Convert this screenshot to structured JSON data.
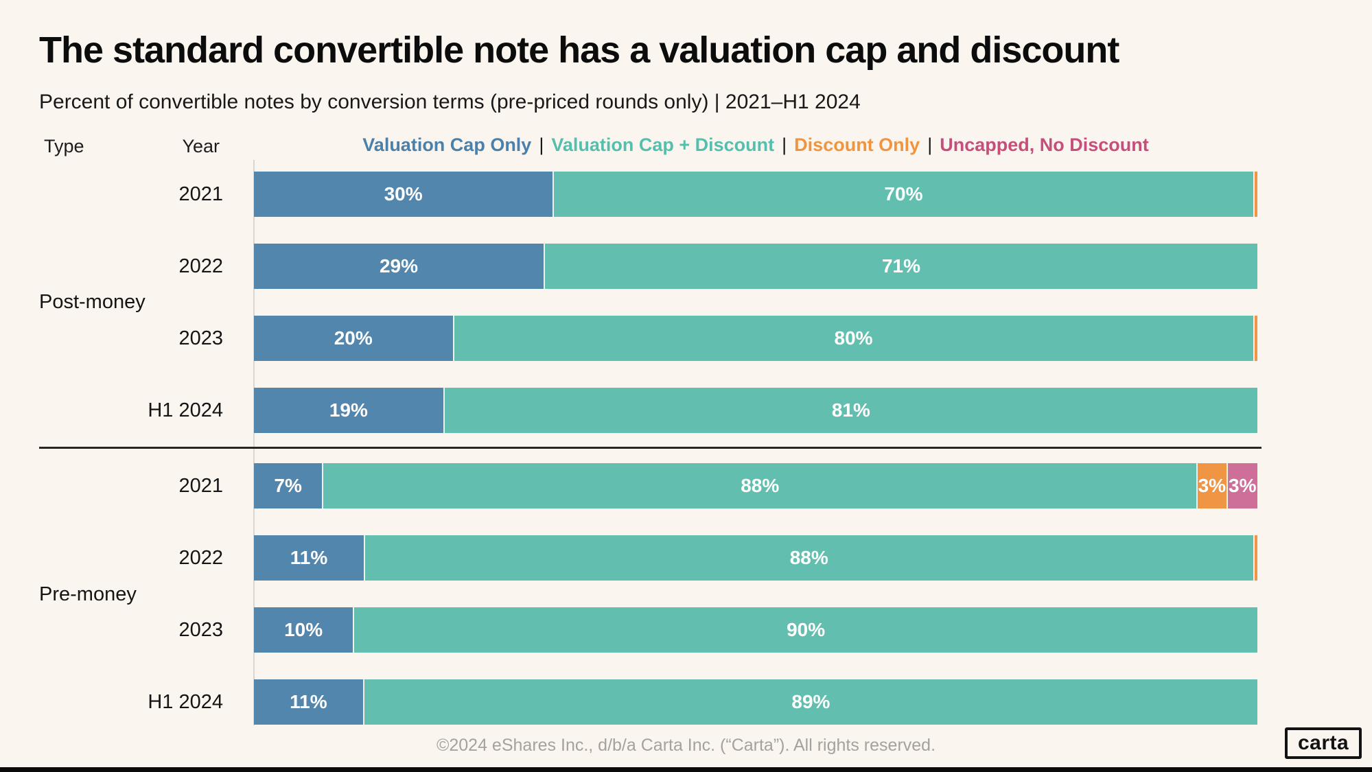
{
  "page": {
    "title": "The standard convertible note has a valuation cap and discount",
    "subtitle": "Percent of convertible notes by conversion terms (pre-priced rounds only) | 2021–H1 2024",
    "footer": "©2024 eShares Inc., d/b/a Carta Inc. (“Carta”). All rights reserved.",
    "logo_text": "carta",
    "background_color": "#faf5ee"
  },
  "header": {
    "type_label": "Type",
    "year_label": "Year"
  },
  "legend": {
    "separator": "|",
    "items": [
      {
        "key": "cap_only",
        "label": "Valuation Cap Only",
        "color": "#4a80aa"
      },
      {
        "key": "cap_discount",
        "label": "Valuation Cap + Discount",
        "color": "#55bfad"
      },
      {
        "key": "discount_only",
        "label": "Discount Only",
        "color": "#f0953f"
      },
      {
        "key": "uncapped",
        "label": "Uncapped, No Discount",
        "color": "#c54e7c"
      }
    ]
  },
  "chart_data": {
    "type": "bar",
    "orientation": "horizontal",
    "stacked": true,
    "unit": "%",
    "x_range": [
      0,
      100
    ],
    "title": "The standard convertible note has a valuation cap and discount",
    "subtitle": "Percent of convertible notes by conversion terms (pre-priced rounds only) | 2021–H1 2024",
    "series_labels": {
      "cap_only": "Valuation Cap Only",
      "cap_discount": "Valuation Cap + Discount",
      "discount_only": "Discount Only",
      "uncapped": "Uncapped, No Discount"
    },
    "series_colors": {
      "cap_only": "#5386ad",
      "cap_discount": "#62bfb0",
      "discount_only": "#ef9544",
      "uncapped": "#ce6f99"
    },
    "groups": [
      {
        "type": "Post-money",
        "rows": [
          {
            "year": "2021",
            "segments": [
              {
                "series": "cap_only",
                "value": 30,
                "label": "30%"
              },
              {
                "series": "cap_discount",
                "value": 70,
                "label": "70%"
              },
              {
                "series": "discount_only",
                "value": 0.3,
                "label": ""
              }
            ]
          },
          {
            "year": "2022",
            "segments": [
              {
                "series": "cap_only",
                "value": 29,
                "label": "29%"
              },
              {
                "series": "cap_discount",
                "value": 71,
                "label": "71%"
              }
            ]
          },
          {
            "year": "2023",
            "segments": [
              {
                "series": "cap_only",
                "value": 20,
                "label": "20%"
              },
              {
                "series": "cap_discount",
                "value": 80,
                "label": "80%"
              },
              {
                "series": "discount_only",
                "value": 0.3,
                "label": ""
              }
            ]
          },
          {
            "year": "H1 2024",
            "segments": [
              {
                "series": "cap_only",
                "value": 19,
                "label": "19%"
              },
              {
                "series": "cap_discount",
                "value": 81,
                "label": "81%"
              }
            ]
          }
        ]
      },
      {
        "type": "Pre-money",
        "rows": [
          {
            "year": "2021",
            "segments": [
              {
                "series": "cap_only",
                "value": 7,
                "label": "7%"
              },
              {
                "series": "cap_discount",
                "value": 88,
                "label": "88%"
              },
              {
                "series": "discount_only",
                "value": 3,
                "label": "3%"
              },
              {
                "series": "uncapped",
                "value": 3,
                "label": "3%"
              }
            ]
          },
          {
            "year": "2022",
            "segments": [
              {
                "series": "cap_only",
                "value": 11,
                "label": "11%"
              },
              {
                "series": "cap_discount",
                "value": 88,
                "label": "88%"
              },
              {
                "series": "discount_only",
                "value": 0.3,
                "label": ""
              }
            ]
          },
          {
            "year": "2023",
            "segments": [
              {
                "series": "cap_only",
                "value": 10,
                "label": "10%"
              },
              {
                "series": "cap_discount",
                "value": 90,
                "label": "90%"
              }
            ]
          },
          {
            "year": "H1 2024",
            "segments": [
              {
                "series": "cap_only",
                "value": 11,
                "label": "11%"
              },
              {
                "series": "cap_discount",
                "value": 89,
                "label": "89%"
              }
            ]
          }
        ]
      }
    ]
  }
}
